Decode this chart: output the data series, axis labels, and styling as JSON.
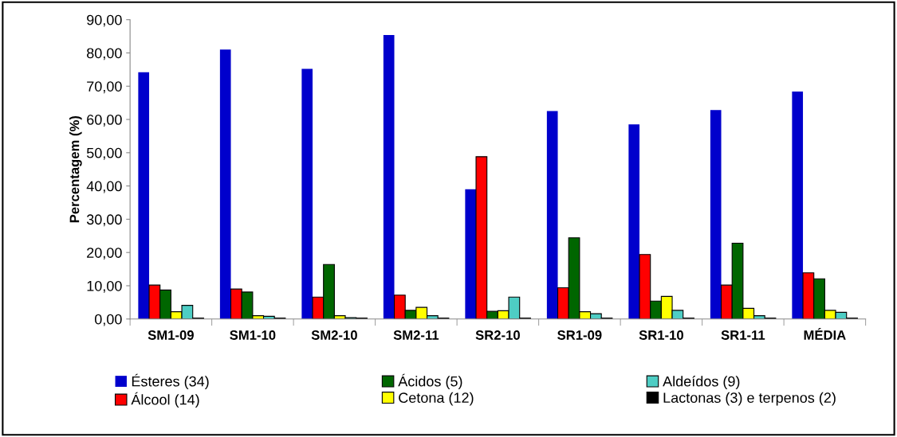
{
  "chart_data": {
    "type": "bar",
    "ylabel": "Percentagem (%)",
    "categories": [
      "SM1-09",
      "SM1-10",
      "SM2-10",
      "SM2-11",
      "SR2-10",
      "SR1-09",
      "SR1-10",
      "SR1-11",
      "MÉDIA"
    ],
    "series": [
      {
        "name": "Ésteres (34)",
        "color": "#0000cc",
        "values": [
          74.2,
          81.0,
          75.2,
          85.4,
          39.0,
          62.5,
          58.5,
          62.8,
          68.4
        ]
      },
      {
        "name": "Álcool (14)",
        "color": "#ff0000",
        "values": [
          10.2,
          9.0,
          6.6,
          7.2,
          48.8,
          9.4,
          19.4,
          10.2,
          13.9
        ]
      },
      {
        "name": "Ácidos (5)",
        "color": "#006600",
        "values": [
          8.7,
          8.1,
          16.4,
          2.6,
          2.3,
          24.4,
          5.4,
          22.8,
          12.1
        ]
      },
      {
        "name": "Cetona (12)",
        "color": "#ffff00",
        "values": [
          2.2,
          1.0,
          1.0,
          3.5,
          2.5,
          2.2,
          6.8,
          3.2,
          2.6
        ]
      },
      {
        "name": "Aldeídos (9)",
        "color": "#4ecdc4",
        "values": [
          4.1,
          0.8,
          0.4,
          1.0,
          6.6,
          1.6,
          2.6,
          1.0,
          2.0
        ]
      },
      {
        "name": "Lactonas (3) e terpenos (2)",
        "color": "#000000",
        "values": [
          0.3,
          0.3,
          0.3,
          0.3,
          0.3,
          0.3,
          0.3,
          0.3,
          0.3
        ]
      }
    ],
    "ylim": [
      0,
      90
    ],
    "yticks": [
      {
        "value": 0,
        "label": "0,00"
      },
      {
        "value": 10,
        "label": "10,00"
      },
      {
        "value": 20,
        "label": "20,00"
      },
      {
        "value": 30,
        "label": "30,00"
      },
      {
        "value": 40,
        "label": "40,00"
      },
      {
        "value": 50,
        "label": "50,00"
      },
      {
        "value": 60,
        "label": "60,00"
      },
      {
        "value": 70,
        "label": "70,00"
      },
      {
        "value": 80,
        "label": "80,00"
      },
      {
        "value": 90,
        "label": "90,00"
      }
    ],
    "grid": false,
    "legend": "bottom"
  }
}
